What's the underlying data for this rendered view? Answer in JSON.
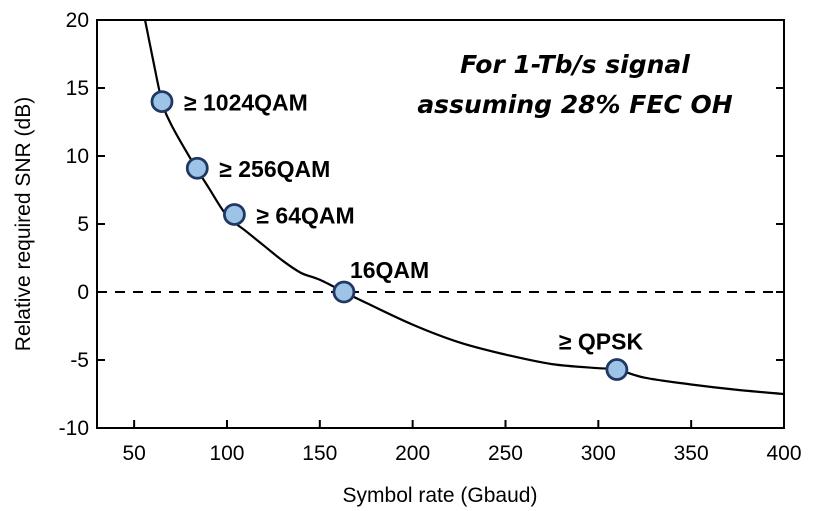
{
  "chart_data": {
    "type": "line",
    "title": "",
    "xlabel": "Symbol rate (Gbaud)",
    "ylabel": "Relative required SNR (dB)",
    "xlim": [
      30,
      400
    ],
    "ylim": [
      -10,
      20
    ],
    "xticks": [
      50,
      100,
      150,
      200,
      250,
      300,
      350,
      400
    ],
    "yticks": [
      -10,
      -5,
      0,
      5,
      10,
      15,
      20
    ],
    "grid": false,
    "legend": "none",
    "annotation_lines": [
      "For 1-Tb/s signal",
      "assuming 28% FEC OH"
    ],
    "reference_line": {
      "y": 0,
      "style": "dashed"
    },
    "curve": {
      "x": [
        55,
        60,
        65,
        70,
        80,
        90,
        100,
        110,
        120,
        130,
        140,
        150,
        163,
        175,
        200,
        225,
        250,
        275,
        300,
        310,
        325,
        350,
        375,
        400
      ],
      "y": [
        20.6,
        17.2,
        14.0,
        12.3,
        9.9,
        7.7,
        5.6,
        4.5,
        3.4,
        2.3,
        1.4,
        0.9,
        0.0,
        -0.8,
        -2.4,
        -3.7,
        -4.6,
        -5.3,
        -5.6,
        -5.7,
        -6.3,
        -6.8,
        -7.2,
        -7.5
      ]
    },
    "points": [
      {
        "x": 65,
        "y": 14.0,
        "label": "≥ 1024QAM"
      },
      {
        "x": 84,
        "y": 9.1,
        "label": "≥ 256QAM"
      },
      {
        "x": 104,
        "y": 5.7,
        "label": "≥ 64QAM"
      },
      {
        "x": 163,
        "y": 0.0,
        "label": "16QAM"
      },
      {
        "x": 310,
        "y": -5.7,
        "label": "≥ QPSK"
      }
    ],
    "colors": {
      "curve": "#000000",
      "marker_fill": "#9dc3e6",
      "marker_stroke": "#1f3864"
    }
  }
}
